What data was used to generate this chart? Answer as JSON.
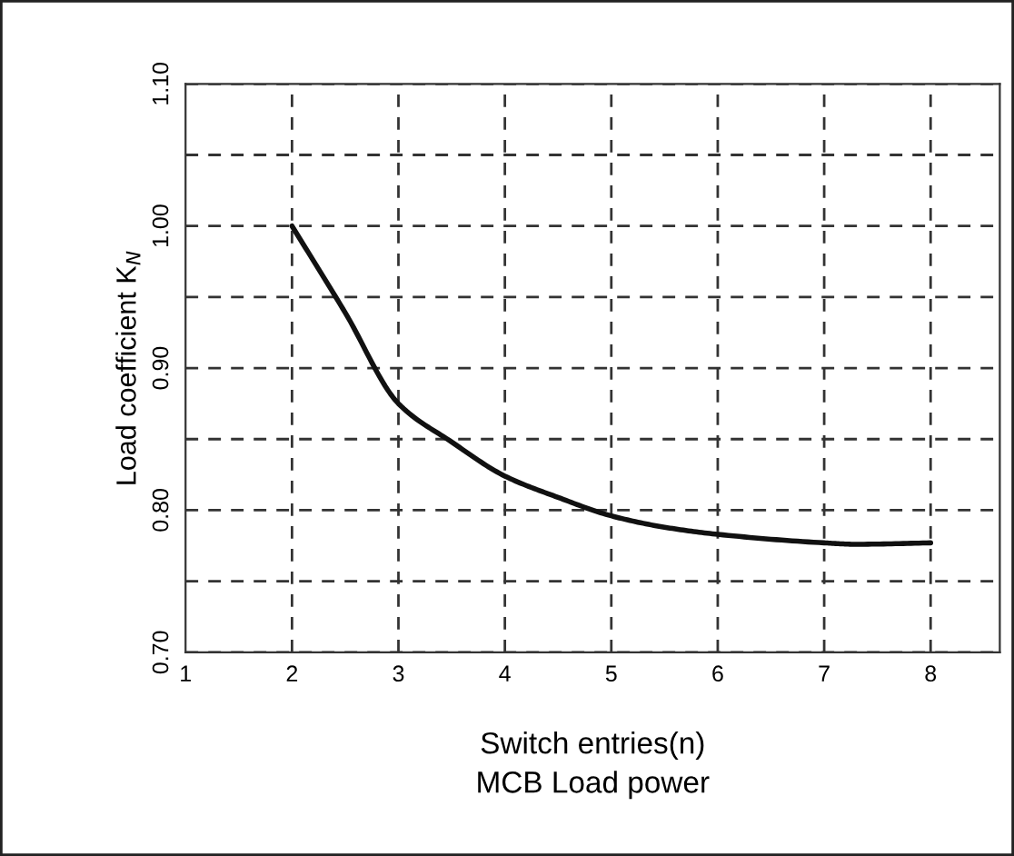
{
  "chart_data": {
    "type": "line",
    "xlabel": "Switch entries(n)\nMCB Load power",
    "ylabel": "Load coefficient K$_{N}$",
    "x": [
      2,
      2.5,
      3,
      3.5,
      4,
      4.5,
      5,
      5.5,
      6,
      7,
      7.3,
      8
    ],
    "series": [
      {
        "color": "#111111",
        "values": [
          1.0,
          0.939,
          0.875,
          0.848,
          0.824,
          0.809,
          0.796,
          0.788,
          0.783,
          0.777,
          0.776,
          0.777
        ]
      }
    ],
    "xlim": [
      1,
      8.65
    ],
    "xticks": [
      1,
      2,
      3,
      4,
      5,
      6,
      7,
      8
    ],
    "ylim": [
      0.7,
      1.1
    ],
    "yticks": [
      {
        "value": 0.7,
        "label": "0.70"
      },
      {
        "value": 0.75,
        "label": null
      },
      {
        "value": 0.8,
        "label": "0.80"
      },
      {
        "value": 0.85,
        "label": null
      },
      {
        "value": 0.9,
        "label": "0.90"
      },
      {
        "value": 0.95,
        "label": null
      },
      {
        "value": 1.0,
        "label": "1.00"
      },
      {
        "value": 1.05,
        "label": null
      },
      {
        "value": 1.1,
        "label": "1.10"
      }
    ],
    "grid": true,
    "marker": "none",
    "line_style": "solid"
  }
}
